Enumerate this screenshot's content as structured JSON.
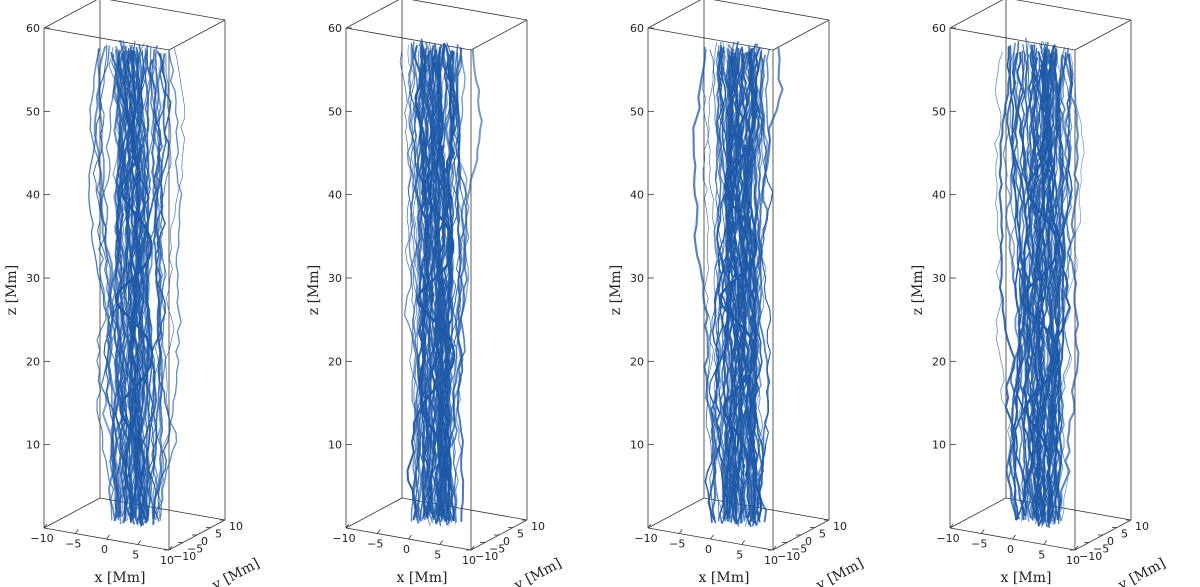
{
  "colors": {
    "line": "#1f5aa8",
    "frame": "#333333",
    "background": "#ffffff"
  },
  "chart_data": [
    {
      "type": "3d-line",
      "panel": 1,
      "xlabel": "x [Mm]",
      "ylabel": "y [Mm]",
      "zlabel": "z [Mm]",
      "xlim": [
        -10,
        10
      ],
      "ylim": [
        -10,
        10
      ],
      "zlim": [
        0,
        60
      ],
      "x_ticks": [
        "−10",
        "−5",
        "0",
        "5",
        "10"
      ],
      "y_ticks": [
        "−10",
        "−5",
        "0",
        "5",
        "10"
      ],
      "z_ticks": [
        "10",
        "20",
        "30",
        "40",
        "50",
        "60"
      ]
    },
    {
      "type": "3d-line",
      "panel": 2,
      "xlabel": "x [Mm]",
      "ylabel": "y [Mm]",
      "zlabel": "z [Mm]",
      "xlim": [
        -10,
        10
      ],
      "ylim": [
        -10,
        10
      ],
      "zlim": [
        0,
        60
      ],
      "x_ticks": [
        "−10",
        "−5",
        "0",
        "5",
        "10"
      ],
      "y_ticks": [
        "−10",
        "−5",
        "0",
        "5",
        "10"
      ],
      "z_ticks": [
        "10",
        "20",
        "30",
        "40",
        "50",
        "60"
      ]
    },
    {
      "type": "3d-line",
      "panel": 3,
      "xlabel": "x [Mm]",
      "ylabel": "y [Mm]",
      "zlabel": "z [Mm]",
      "xlim": [
        -10,
        10
      ],
      "ylim": [
        -10,
        10
      ],
      "zlim": [
        0,
        60
      ],
      "x_ticks": [
        "−10",
        "−5",
        "0",
        "5",
        "10"
      ],
      "y_ticks": [
        "−10",
        "−5",
        "0",
        "5",
        "10"
      ],
      "z_ticks": [
        "10",
        "20",
        "30",
        "40",
        "50",
        "60"
      ]
    },
    {
      "type": "3d-line",
      "panel": 4,
      "xlabel": "x [Mm]",
      "ylabel": "y [Mm]",
      "zlabel": "z [Mm]",
      "xlim": [
        -10,
        10
      ],
      "ylim": [
        -10,
        10
      ],
      "zlim": [
        0,
        60
      ],
      "x_ticks": [
        "−10",
        "−5",
        "0",
        "5",
        "10"
      ],
      "y_ticks": [
        "−10",
        "−5",
        "0",
        "5",
        "10"
      ],
      "z_ticks": [
        "10",
        "20",
        "30",
        "40",
        "50",
        "60"
      ]
    }
  ]
}
